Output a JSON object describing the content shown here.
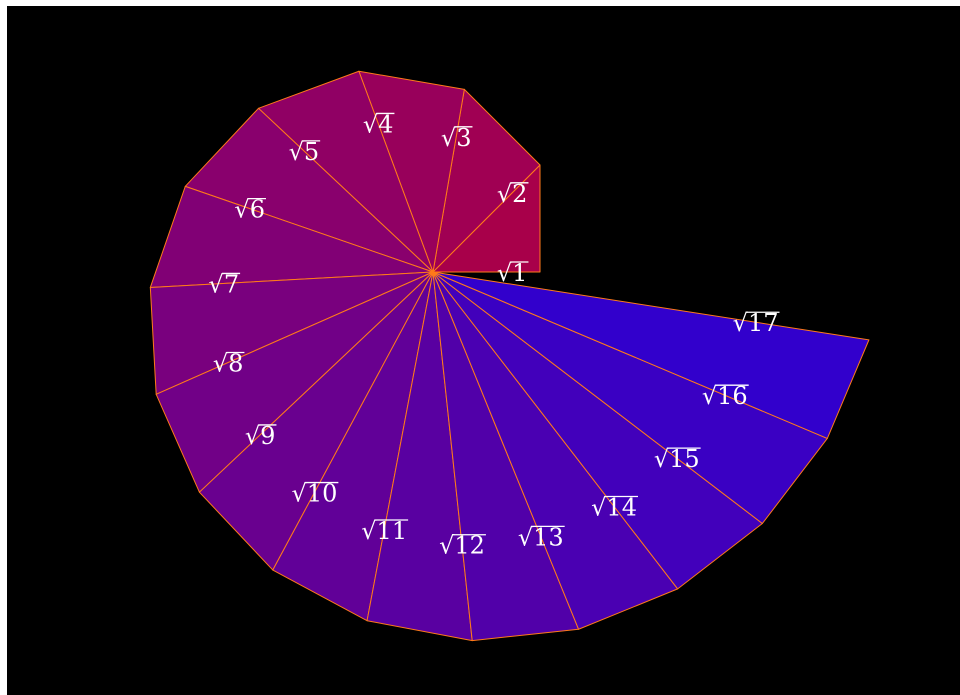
{
  "diagram": {
    "type": "spiral-of-theodorus",
    "triangle_count": 16,
    "hypotenuse_labels": [
      "1",
      "2",
      "3",
      "4",
      "5",
      "6",
      "7",
      "8",
      "9",
      "10",
      "11",
      "12",
      "13",
      "14",
      "15",
      "16",
      "17"
    ],
    "colors": {
      "background": "#000000",
      "edge": "#ff7a1a",
      "label": "#ffffff",
      "gradient_start": "#a8004a",
      "gradient_end": "#3200cc"
    }
  }
}
